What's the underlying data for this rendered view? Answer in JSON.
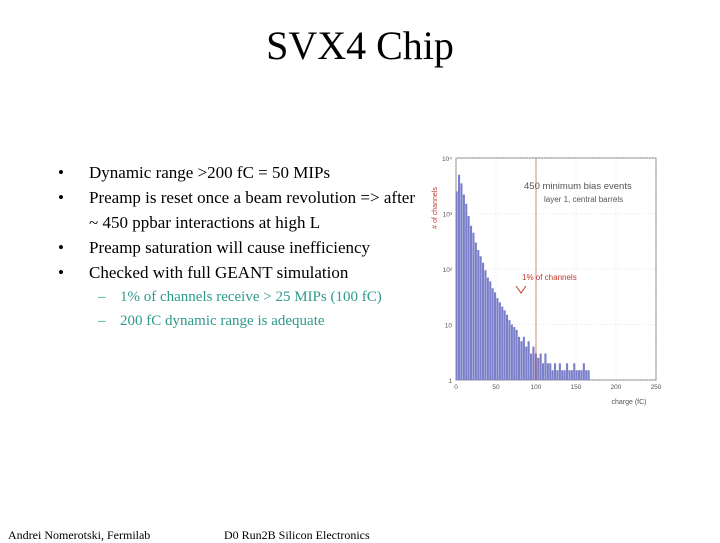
{
  "slide": {
    "title": "SVX4 Chip",
    "bullets": [
      "Dynamic range >200 fC = 50 MIPs",
      "Preamp is reset once a beam revolution => after ~ 450 ppbar interactions at high L",
      "Preamp saturation will cause inefficiency",
      "Checked with full GEANT simulation"
    ],
    "sub_bullets": [
      "1% of channels receive > 25 MIPs (100 fC)",
      "200 fC dynamic range is adequate"
    ],
    "footer_left": "Andrei Nomerotski, Fermilab",
    "footer_right": "D0 Run2B Silicon Electronics"
  },
  "chart_data": {
    "type": "bar",
    "ylabel": "# of channels",
    "xlabel": "charge (fC)",
    "yscale": "log",
    "ylim": [
      1,
      10000
    ],
    "xlim": [
      0,
      250
    ],
    "x_ticks": [
      0,
      50,
      100,
      150,
      200,
      250
    ],
    "y_ticks": [
      {
        "label": "10⁴",
        "value": 10000
      },
      {
        "label": "10³",
        "value": 1000
      },
      {
        "label": "10²",
        "value": 100
      },
      {
        "label": "10",
        "value": 10
      },
      {
        "label": "1",
        "value": 1
      }
    ],
    "annotations": [
      "450 minimum bias events",
      "layer 1, central barrels",
      "1% of channels"
    ],
    "marker_x": 100,
    "bar_width": 3,
    "bars": {
      "x": [
        1,
        4,
        7,
        10,
        13,
        16,
        19,
        22,
        25,
        28,
        31,
        34,
        37,
        40,
        43,
        46,
        49,
        52,
        55,
        58,
        61,
        64,
        67,
        70,
        73,
        76,
        79,
        82,
        85,
        88,
        91,
        94,
        97,
        100,
        103,
        106,
        109,
        112,
        115,
        118,
        121,
        124,
        127,
        130,
        133,
        136,
        139,
        142,
        145,
        148,
        151,
        154,
        157,
        160,
        163,
        166
      ],
      "values": [
        2500,
        5000,
        3500,
        2200,
        1500,
        900,
        600,
        450,
        300,
        220,
        170,
        130,
        95,
        70,
        60,
        45,
        38,
        30,
        25,
        21,
        18,
        15,
        12,
        10,
        9,
        8,
        6,
        5,
        6,
        4,
        5,
        3,
        4,
        3,
        2.5,
        3,
        2,
        3,
        2,
        2,
        1.5,
        2,
        1.5,
        2,
        1.5,
        1.5,
        2,
        1.5,
        1.5,
        2,
        1.5,
        1.5,
        1.5,
        2,
        1.5,
        1.5
      ]
    }
  }
}
